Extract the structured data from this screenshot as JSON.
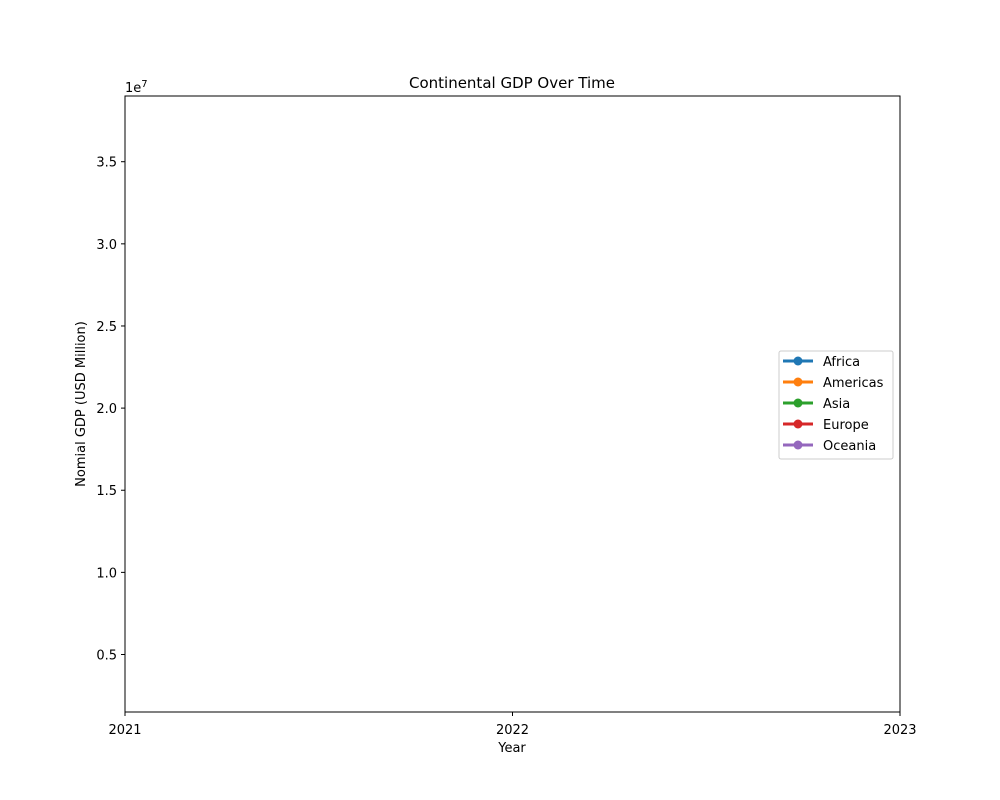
{
  "chart_data": {
    "type": "line",
    "title": "Continental GDP Over Time",
    "xlabel": "Year",
    "ylabel": "Nomial GDP (USD Million)",
    "y_offset_label": "1e7",
    "xlim": [
      2021,
      2023
    ],
    "ylim": [
      1500000,
      39000000
    ],
    "x_ticks": [
      2021,
      2022,
      2023
    ],
    "x_tick_labels": [
      "2021",
      "2022",
      "2023"
    ],
    "y_ticks": [
      5000000,
      10000000,
      15000000,
      20000000,
      25000000,
      30000000,
      35000000
    ],
    "y_tick_labels": [
      "0.5",
      "1.0",
      "1.5",
      "2.0",
      "2.5",
      "3.0",
      "3.5"
    ],
    "grid": false,
    "legend_position": "center-right",
    "series": [
      {
        "name": "Africa",
        "color": "#1f77b4",
        "x": [],
        "values": []
      },
      {
        "name": "Americas",
        "color": "#ff7f0e",
        "x": [],
        "values": []
      },
      {
        "name": "Asia",
        "color": "#2ca02c",
        "x": [],
        "values": []
      },
      {
        "name": "Europe",
        "color": "#d62728",
        "x": [],
        "values": []
      },
      {
        "name": "Oceania",
        "color": "#9467bd",
        "x": [],
        "values": []
      }
    ]
  }
}
